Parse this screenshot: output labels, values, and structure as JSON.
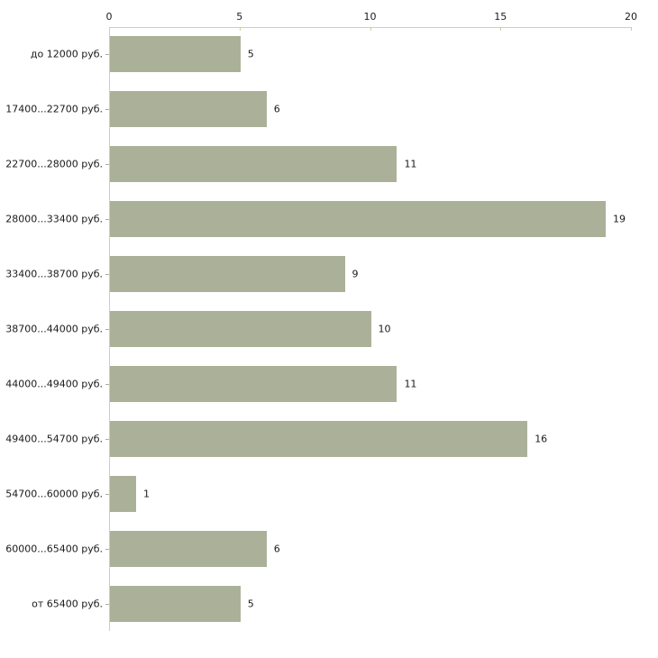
{
  "chart_data": {
    "type": "bar",
    "orientation": "horizontal",
    "title": "",
    "xlabel": "",
    "ylabel": "",
    "categories": [
      "до 12000 руб.",
      "17400...22700 руб.",
      "22700...28000 руб.",
      "28000...33400 руб.",
      "33400...38700 руб.",
      "38700...44000 руб.",
      "44000...49400 руб.",
      "49400...54700 руб.",
      "54700...60000 руб.",
      "60000...65400 руб.",
      "от 65400 руб."
    ],
    "values": [
      5,
      6,
      11,
      19,
      9,
      10,
      11,
      16,
      1,
      6,
      5
    ],
    "xlim": [
      0,
      20
    ],
    "x_ticks": [
      0,
      5,
      10,
      15,
      20
    ],
    "grid": false,
    "legend": false,
    "axis_position": "top",
    "colors": {
      "bar": "#abb198",
      "axis_line": "#cdcdc8",
      "x_tick_mark": "#c9cfa4",
      "category_tick_mark": "#abb198",
      "text": "#1a1a1a",
      "background": "#ffffff"
    }
  }
}
